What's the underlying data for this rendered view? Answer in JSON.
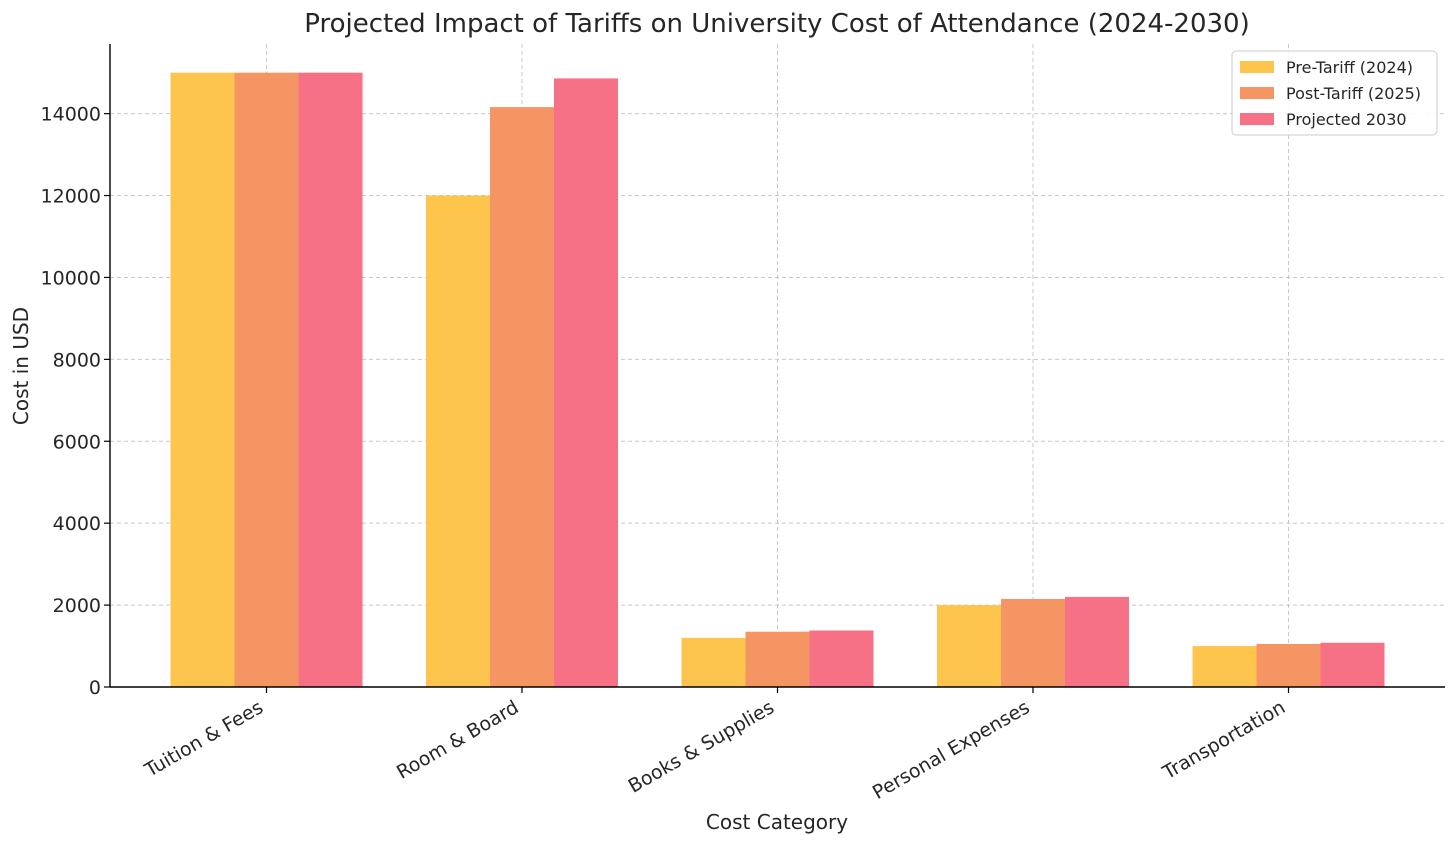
{
  "chart_data": {
    "type": "bar",
    "title": "Projected Impact of Tariffs on University Cost of Attendance (2024-2030)",
    "xlabel": "Cost Category",
    "ylabel": "Cost in USD",
    "categories": [
      "Tuition & Fees",
      "Room & Board",
      "Books & Supplies",
      "Personal Expenses",
      "Transportation"
    ],
    "series": [
      {
        "name": "Pre-Tariff (2024)",
        "color": "#fdc54d",
        "values": [
          15000,
          12000,
          1200,
          2000,
          1000
        ]
      },
      {
        "name": "Post-Tariff (2025)",
        "color": "#f59563",
        "values": [
          15000,
          14160,
          1350,
          2150,
          1050
        ]
      },
      {
        "name": "Projected 2030",
        "color": "#f77186",
        "values": [
          15000,
          14860,
          1380,
          2200,
          1080
        ]
      }
    ],
    "ylim": [
      0,
      15700
    ],
    "yticks": [
      0,
      2000,
      4000,
      6000,
      8000,
      10000,
      12000,
      14000
    ],
    "grid": true,
    "legend_position": "top-right"
  }
}
